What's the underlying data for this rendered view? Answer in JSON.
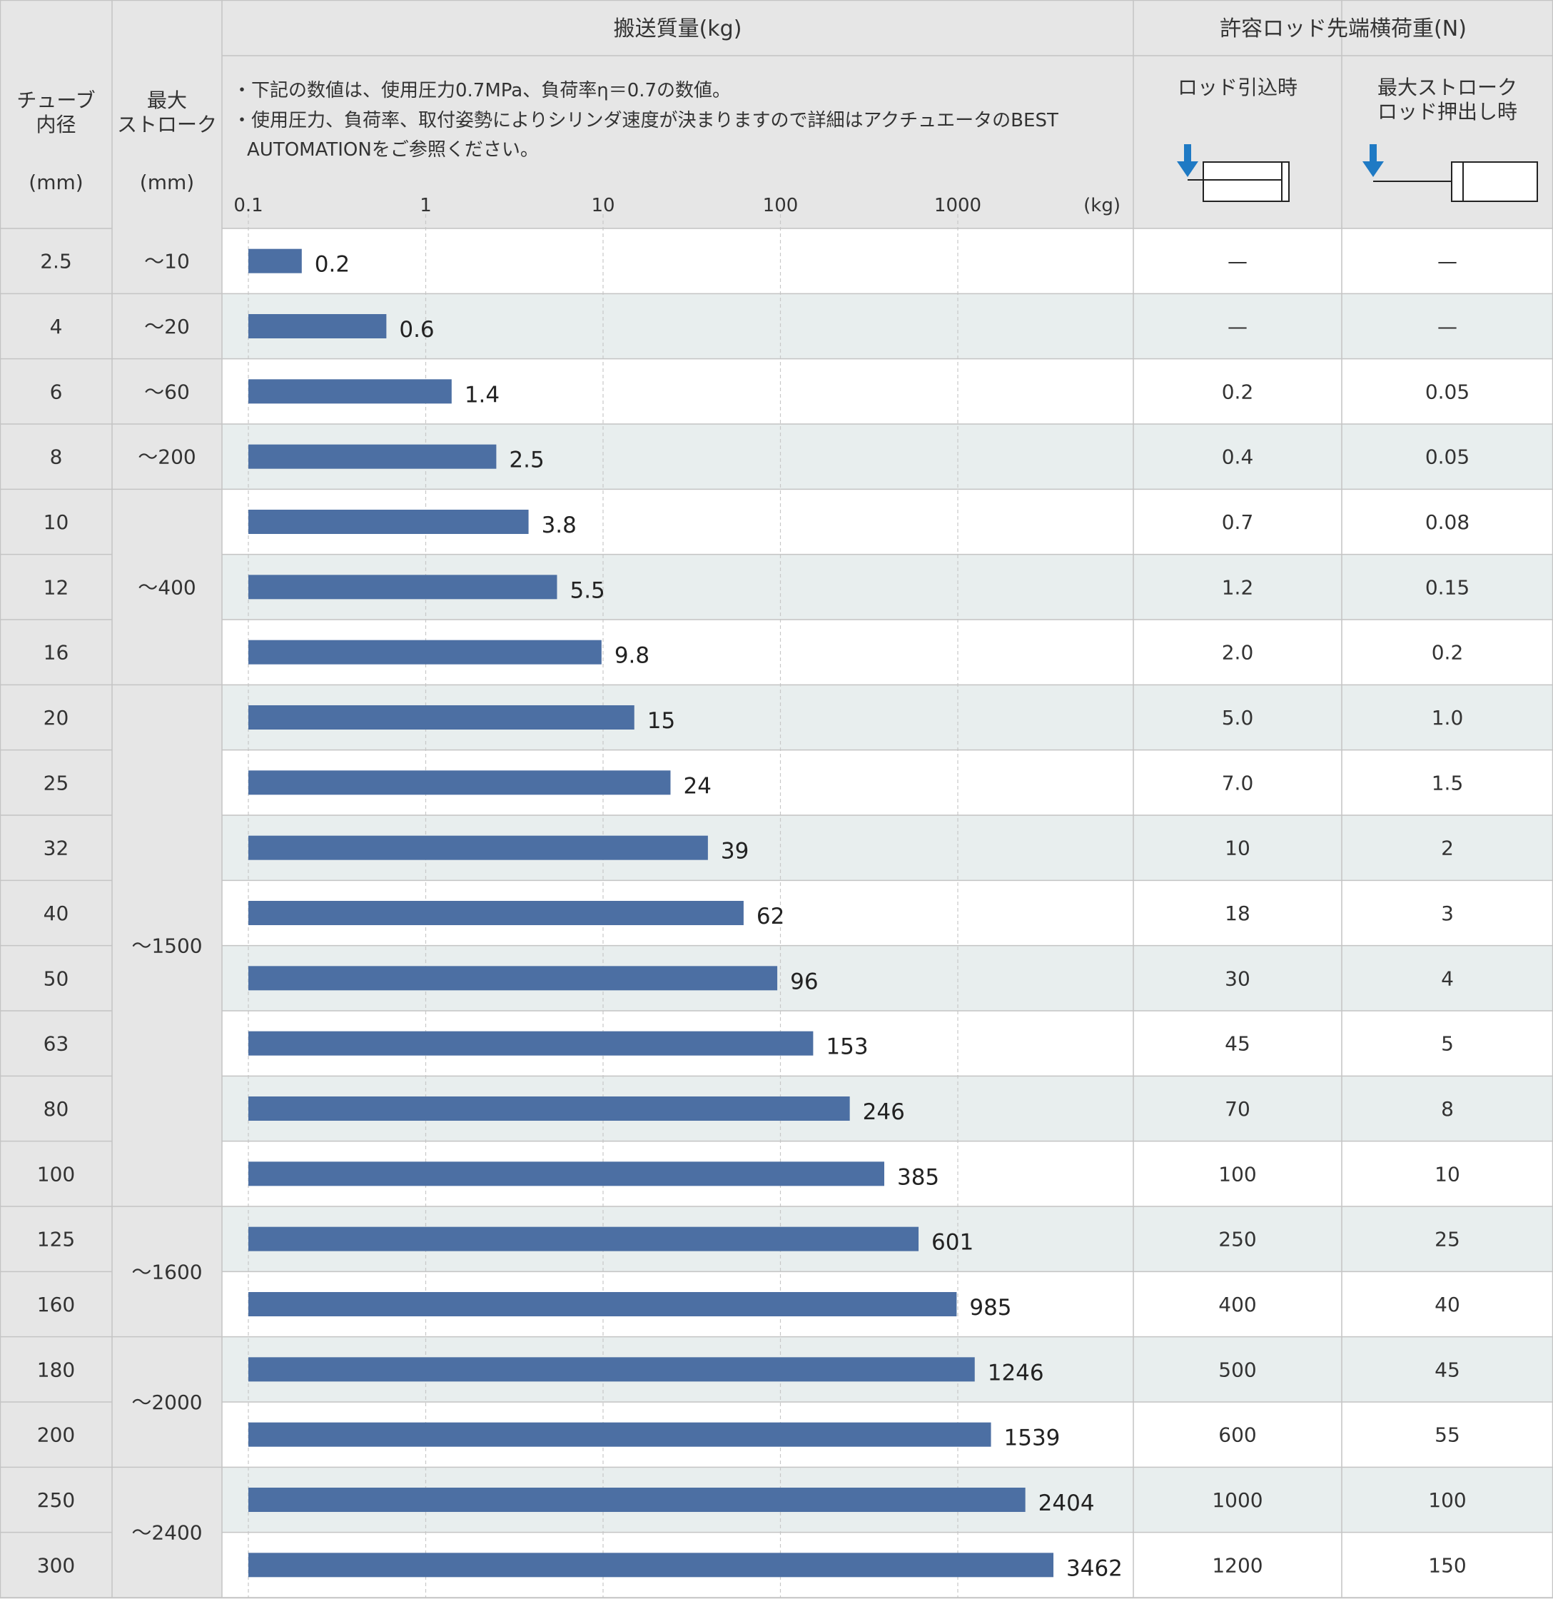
{
  "headers": {
    "col_tube": [
      "チューブ",
      "内径",
      "(mm)"
    ],
    "col_stroke": [
      "最大",
      "ストローク",
      "(mm)"
    ],
    "transport_title": "搬送質量(kg)",
    "notes": [
      "・下記の数値は、使用圧力0.7MPa、負荷率η＝0.7の数値。",
      "・使用圧力、負荷率、取付姿勢によりシリンダ速度が決まりますので詳細はアクチュエータのBEST",
      "AUTOMATIONをご参照ください。"
    ],
    "lateral_title": "許容ロッド先端横荷重(N)",
    "lateral_retract": "ロッド引込時",
    "lateral_extend": [
      "最大ストローク",
      "ロッド押出し時"
    ],
    "axis_unit": "(kg)"
  },
  "colors": {
    "bar": "#4c6fa3",
    "header_bg": "#e6e6e6",
    "row_alt": "#e8eeee",
    "grid": "#c8c8c8",
    "arrow": "#1f7ac4"
  },
  "icons": [
    "arrow-down-icon",
    "cylinder-retracted-icon",
    "cylinder-extended-icon"
  ],
  "chart_data": {
    "type": "bar",
    "orientation": "horizontal",
    "x_scale": "log",
    "xlim": [
      0.1,
      5000
    ],
    "xticks": [
      "0.1",
      "1",
      "10",
      "100",
      "1000"
    ],
    "xlabel": "(kg)",
    "title": "搬送質量(kg)",
    "categories": [
      "2.5",
      "4",
      "6",
      "8",
      "10",
      "12",
      "16",
      "20",
      "25",
      "32",
      "40",
      "50",
      "63",
      "80",
      "100",
      "125",
      "160",
      "180",
      "200",
      "250",
      "300"
    ],
    "values": [
      0.2,
      0.6,
      1.4,
      2.5,
      3.8,
      5.5,
      9.8,
      15,
      24,
      39,
      62,
      96,
      153,
      246,
      385,
      601,
      985,
      1246,
      1539,
      2404,
      3462
    ],
    "value_labels": [
      "0.2",
      "0.6",
      "1.4",
      "2.5",
      "3.8",
      "5.5",
      "9.8",
      "15",
      "24",
      "39",
      "62",
      "96",
      "153",
      "246",
      "385",
      "601",
      "985",
      "1246",
      "1539",
      "2404",
      "3462"
    ]
  },
  "rows": [
    {
      "bore": "2.5",
      "retract": "—",
      "extend": "—"
    },
    {
      "bore": "4",
      "retract": "—",
      "extend": "—"
    },
    {
      "bore": "6",
      "retract": "0.2",
      "extend": "0.05"
    },
    {
      "bore": "8",
      "retract": "0.4",
      "extend": "0.05"
    },
    {
      "bore": "10",
      "retract": "0.7",
      "extend": "0.08"
    },
    {
      "bore": "12",
      "retract": "1.2",
      "extend": "0.15"
    },
    {
      "bore": "16",
      "retract": "2.0",
      "extend": "0.2"
    },
    {
      "bore": "20",
      "retract": "5.0",
      "extend": "1.0"
    },
    {
      "bore": "25",
      "retract": "7.0",
      "extend": "1.5"
    },
    {
      "bore": "32",
      "retract": "10",
      "extend": "2"
    },
    {
      "bore": "40",
      "retract": "18",
      "extend": "3"
    },
    {
      "bore": "50",
      "retract": "30",
      "extend": "4"
    },
    {
      "bore": "63",
      "retract": "45",
      "extend": "5"
    },
    {
      "bore": "80",
      "retract": "70",
      "extend": "8"
    },
    {
      "bore": "100",
      "retract": "100",
      "extend": "10"
    },
    {
      "bore": "125",
      "retract": "250",
      "extend": "25"
    },
    {
      "bore": "160",
      "retract": "400",
      "extend": "40"
    },
    {
      "bore": "180",
      "retract": "500",
      "extend": "45"
    },
    {
      "bore": "200",
      "retract": "600",
      "extend": "55"
    },
    {
      "bore": "250",
      "retract": "1000",
      "extend": "100"
    },
    {
      "bore": "300",
      "retract": "1200",
      "extend": "150"
    }
  ],
  "stroke_groups": [
    {
      "label": "～10",
      "start": 0,
      "end": 0
    },
    {
      "label": "～20",
      "start": 1,
      "end": 1
    },
    {
      "label": "～60",
      "start": 2,
      "end": 2
    },
    {
      "label": "～200",
      "start": 3,
      "end": 3
    },
    {
      "label": "～400",
      "start": 4,
      "end": 6
    },
    {
      "label": "～1500",
      "start": 7,
      "end": 14
    },
    {
      "label": "～1600",
      "start": 15,
      "end": 16
    },
    {
      "label": "～2000",
      "start": 17,
      "end": 18
    },
    {
      "label": "～2400",
      "start": 19,
      "end": 20
    }
  ]
}
